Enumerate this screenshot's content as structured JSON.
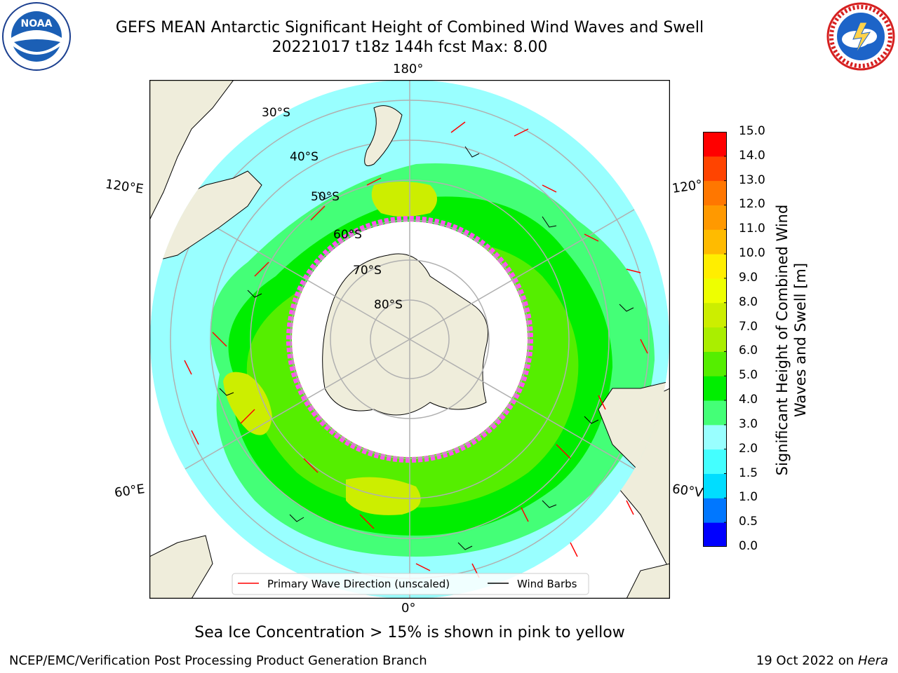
{
  "header": {
    "title": "GEFS MEAN Antarctic Significant Height of Combined Wind Waves and Swell",
    "subtitle": "20221017 t18z 144h fcst   Max: 8.00"
  },
  "logos": {
    "left": "NOAA",
    "right": "NATIONAL WEATHER SERVICE"
  },
  "map": {
    "longitude_labels": {
      "top": "180°",
      "left_upper": "120°E",
      "right_upper": "120°",
      "left_lower": "60°E",
      "right_lower": "60°V",
      "bottom": "0°"
    },
    "latitude_labels": [
      "30°S",
      "40°S",
      "50°S",
      "60°S",
      "70°S",
      "80°S"
    ],
    "legend": {
      "wave_direction": "Primary Wave Direction (unscaled)",
      "wind_barbs": "Wind Barbs"
    },
    "colors": {
      "land": "#efeddb",
      "sea_ice": "#ff55ee",
      "arrow": "#ff0000",
      "grid": "#b0b0b0"
    }
  },
  "colorbar": {
    "label": "Significant Height of Combined Wind Waves and Swell [m]",
    "ticks": [
      "0.0",
      "0.5",
      "1.0",
      "1.5",
      "2.0",
      "3.0",
      "4.0",
      "5.0",
      "6.0",
      "7.0",
      "8.0",
      "9.0",
      "10.0",
      "11.0",
      "12.0",
      "13.0",
      "14.0",
      "15.0"
    ],
    "colors": [
      "#0000ff",
      "#0077ff",
      "#00ddff",
      "#44ffff",
      "#99ffff",
      "#44ff77",
      "#00ee00",
      "#55ee00",
      "#aaee00",
      "#ccee00",
      "#eeff00",
      "#ffee00",
      "#ffbb00",
      "#ff9900",
      "#ff7700",
      "#ff4400",
      "#ff0000"
    ]
  },
  "footer": {
    "note": "Sea Ice Concentration > 15% is shown in pink to yellow",
    "credit": "NCEP/EMC/Verification Post Processing Product Generation Branch",
    "date": "19 Oct 2022 on",
    "machine": "Hera"
  }
}
